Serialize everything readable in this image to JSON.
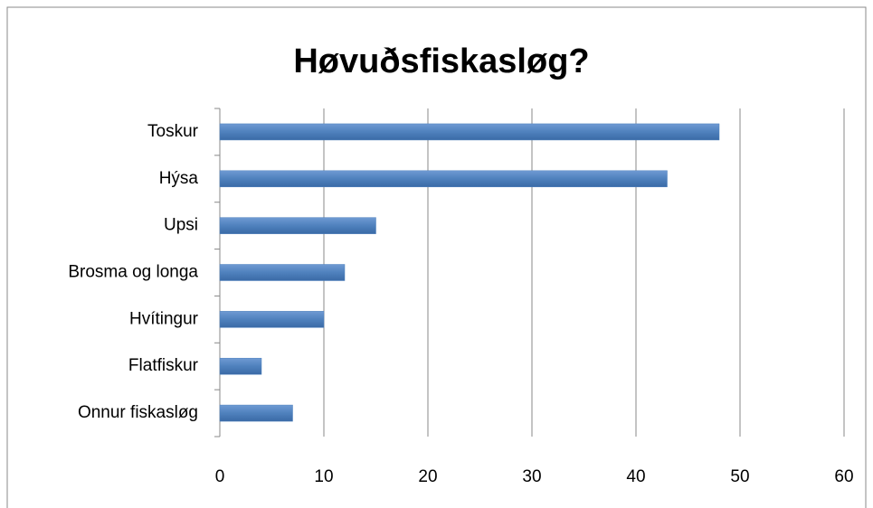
{
  "chart_data": {
    "type": "barh",
    "title": "Høvuðsfiskasløg?",
    "categories": [
      "Toskur",
      "Hýsa",
      "Upsi",
      "Brosma og longa",
      "Hvítingur",
      "Flatfiskur",
      "Onnur fiskasløg"
    ],
    "values": [
      48,
      43,
      15,
      12,
      10,
      4,
      7
    ],
    "color": "#4f81bd",
    "xlim": [
      0,
      60
    ],
    "xticks": [
      0,
      10,
      20,
      30,
      40,
      50,
      60
    ],
    "grid": true
  }
}
